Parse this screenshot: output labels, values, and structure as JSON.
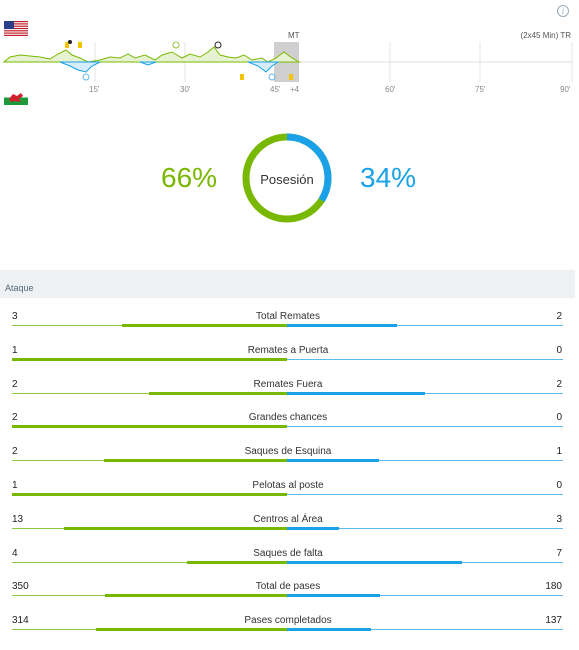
{
  "timeline": {
    "home_flag": "flag-usa",
    "away_flag": "flag-wales",
    "halftime_label": "MT",
    "extra_label": "(2x45 Min) TR",
    "stoppage_label": "+4",
    "ticks": [
      "15'",
      "30'",
      "45'",
      "60'",
      "75'",
      "90'"
    ],
    "colors": {
      "home": "#79b800",
      "away": "#1aa1e8",
      "card": "#f5c400"
    }
  },
  "possession": {
    "label": "Posesión",
    "home_pct": "66%",
    "away_pct": "34%",
    "home_value": 66,
    "away_value": 34
  },
  "section": {
    "title": "Ataque"
  },
  "stats": [
    {
      "name": "Total Remates",
      "home": "3",
      "away": "2",
      "home_n": 3,
      "away_n": 2
    },
    {
      "name": "Remates a Puerta",
      "home": "1",
      "away": "0",
      "home_n": 1,
      "away_n": 0
    },
    {
      "name": "Remates Fuera",
      "home": "2",
      "away": "2",
      "home_n": 2,
      "away_n": 2
    },
    {
      "name": "Grandes chances",
      "home": "2",
      "away": "0",
      "home_n": 2,
      "away_n": 0
    },
    {
      "name": "Saques de Esquina",
      "home": "2",
      "away": "1",
      "home_n": 2,
      "away_n": 1
    },
    {
      "name": "Pelotas al poste",
      "home": "1",
      "away": "0",
      "home_n": 1,
      "away_n": 0
    },
    {
      "name": "Centros al Área",
      "home": "13",
      "away": "3",
      "home_n": 13,
      "away_n": 3
    },
    {
      "name": "Saques de falta",
      "home": "4",
      "away": "7",
      "home_n": 4,
      "away_n": 7
    },
    {
      "name": "Total de pases",
      "home": "350",
      "away": "180",
      "home_n": 350,
      "away_n": 180
    },
    {
      "name": "Pases completados",
      "home": "314",
      "away": "137",
      "home_n": 314,
      "away_n": 137
    }
  ]
}
